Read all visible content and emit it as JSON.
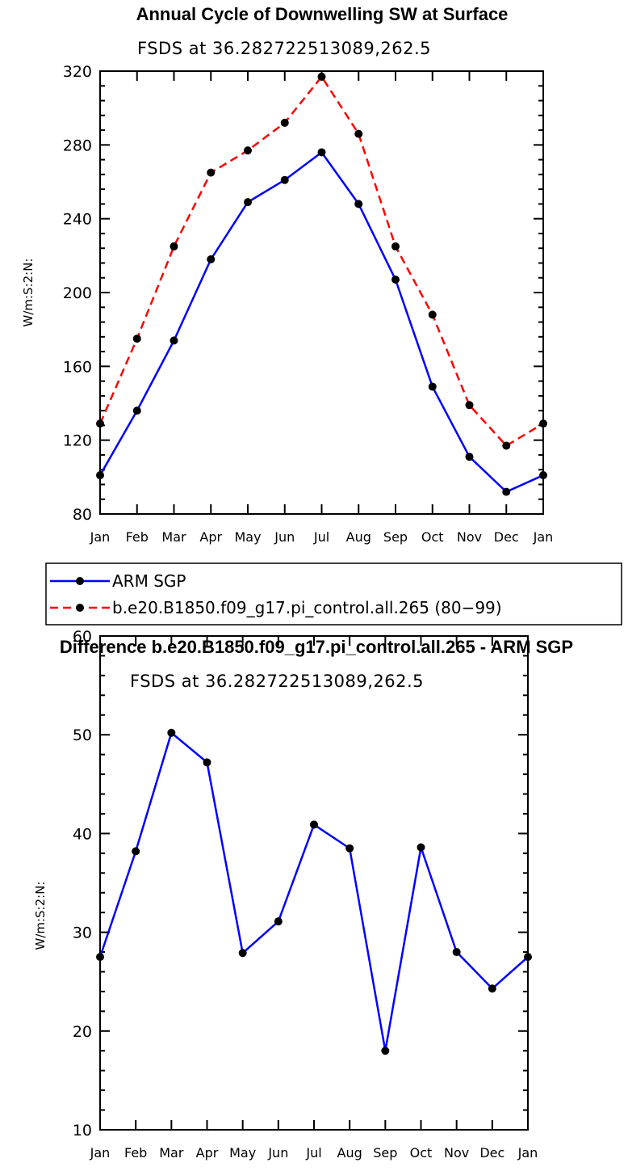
{
  "chart_data": [
    {
      "type": "line",
      "title": "Annual Cycle of Downwelling SW at Surface",
      "subtitle": "FSDS at 36.282722513089,262.5",
      "ylabel": "W/m:S:2:N:",
      "xlabel": "",
      "categories": [
        "Jan",
        "Feb",
        "Mar",
        "Apr",
        "May",
        "Jun",
        "Jul",
        "Aug",
        "Sep",
        "Oct",
        "Nov",
        "Dec",
        "Jan"
      ],
      "ylim": [
        80,
        320
      ],
      "yticks": [
        80,
        120,
        160,
        200,
        240,
        280,
        320
      ],
      "legend": "bottom",
      "series": [
        {
          "name": "ARM SGP",
          "color": "#0000ff",
          "dash": "solid",
          "values": [
            101,
            136,
            174,
            218,
            249,
            261,
            276,
            248,
            207,
            149,
            111,
            92,
            101
          ]
        },
        {
          "name": "b.e20.B1850.f09_g17.pi_control.all.265 (80−99)",
          "color": "#ff0000",
          "dash": "dashed",
          "values": [
            129,
            175,
            225,
            265,
            277,
            292,
            317,
            286,
            225,
            188,
            139,
            117,
            129
          ]
        }
      ]
    },
    {
      "type": "line",
      "title": "Difference b.e20.B1850.f09_g17.pi_control.all.265 - ARM SGP",
      "subtitle": "FSDS at 36.282722513089,262.5",
      "ylabel": "W/m:S:2:N:",
      "xlabel": "",
      "categories": [
        "Jan",
        "Feb",
        "Mar",
        "Apr",
        "May",
        "Jun",
        "Jul",
        "Aug",
        "Sep",
        "Oct",
        "Nov",
        "Dec",
        "Jan"
      ],
      "ylim": [
        10,
        60
      ],
      "yticks": [
        10,
        20,
        30,
        40,
        50,
        60
      ],
      "series": [
        {
          "color": "#0000ff",
          "dash": "solid",
          "values": [
            27.5,
            38.2,
            50.2,
            47.2,
            27.9,
            31.1,
            40.9,
            38.5,
            18.0,
            38.6,
            28.0,
            24.3,
            27.5
          ]
        }
      ]
    }
  ]
}
